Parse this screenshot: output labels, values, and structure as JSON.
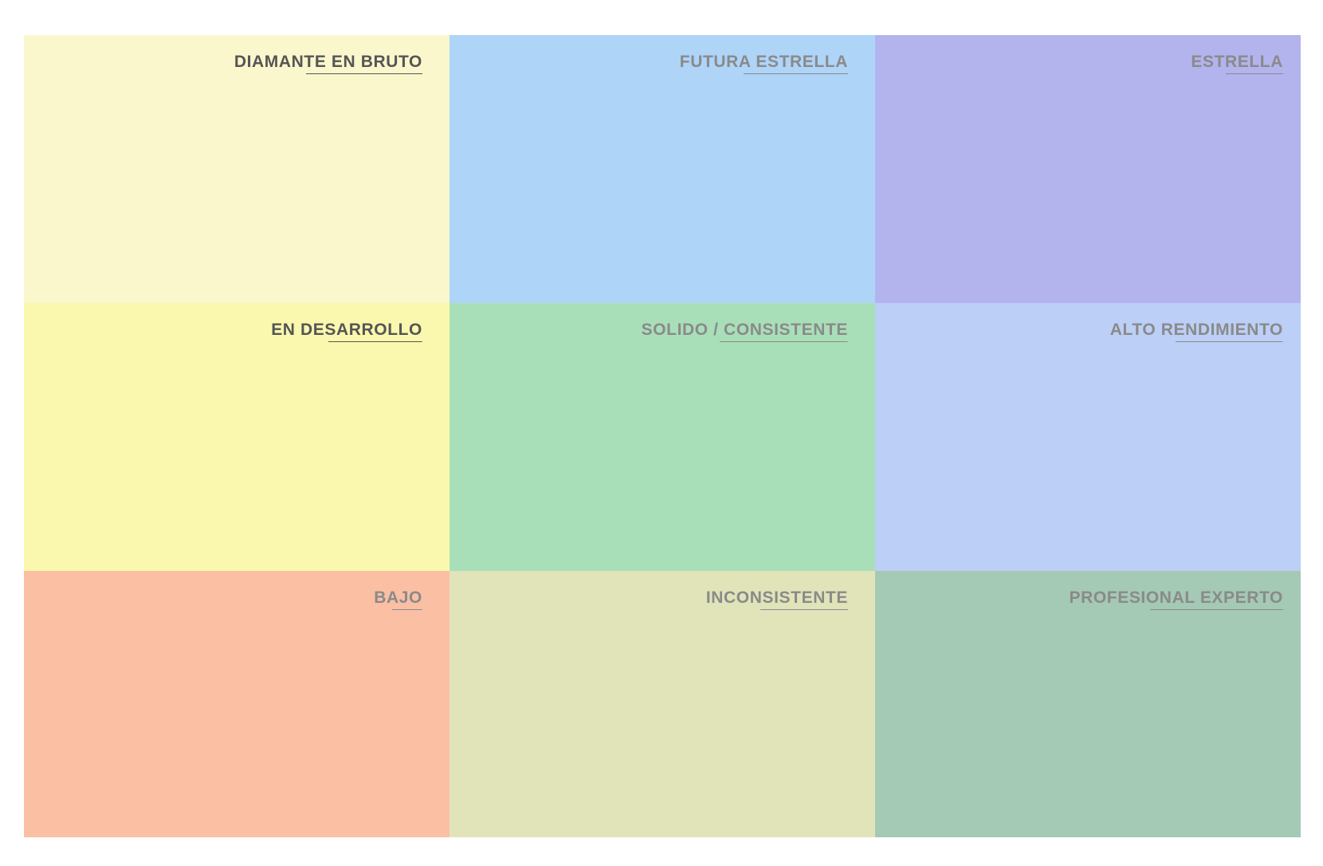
{
  "matrix": {
    "cells": [
      {
        "label": "DIAMANTE EN BRUTO",
        "color": "#faf7cc",
        "text_color": "#555555"
      },
      {
        "label": "FUTURA ESTRELLA",
        "color": "#aed4f8",
        "text_color": "#8a8a8a"
      },
      {
        "label": "ESTRELLA",
        "color": "#b3b3ee",
        "text_color": "#8a8a8a"
      },
      {
        "label": "EN DESARROLLO",
        "color": "#faf8ae",
        "text_color": "#555555"
      },
      {
        "label": "SOLIDO / CONSISTENTE",
        "color": "#a9dfb8",
        "text_color": "#8a8a8a"
      },
      {
        "label": "ALTO RENDIMIENTO",
        "color": "#bccff7",
        "text_color": "#8a8a8a"
      },
      {
        "label": "BAJO",
        "color": "#fbbfa4",
        "text_color": "#8a8a8a"
      },
      {
        "label": "INCONSISTENTE",
        "color": "#e1e4b9",
        "text_color": "#8a8a8a"
      },
      {
        "label": "PROFESIONAL EXPERTO",
        "color": "#a4c9b5",
        "text_color": "#8a8a8a"
      }
    ]
  }
}
